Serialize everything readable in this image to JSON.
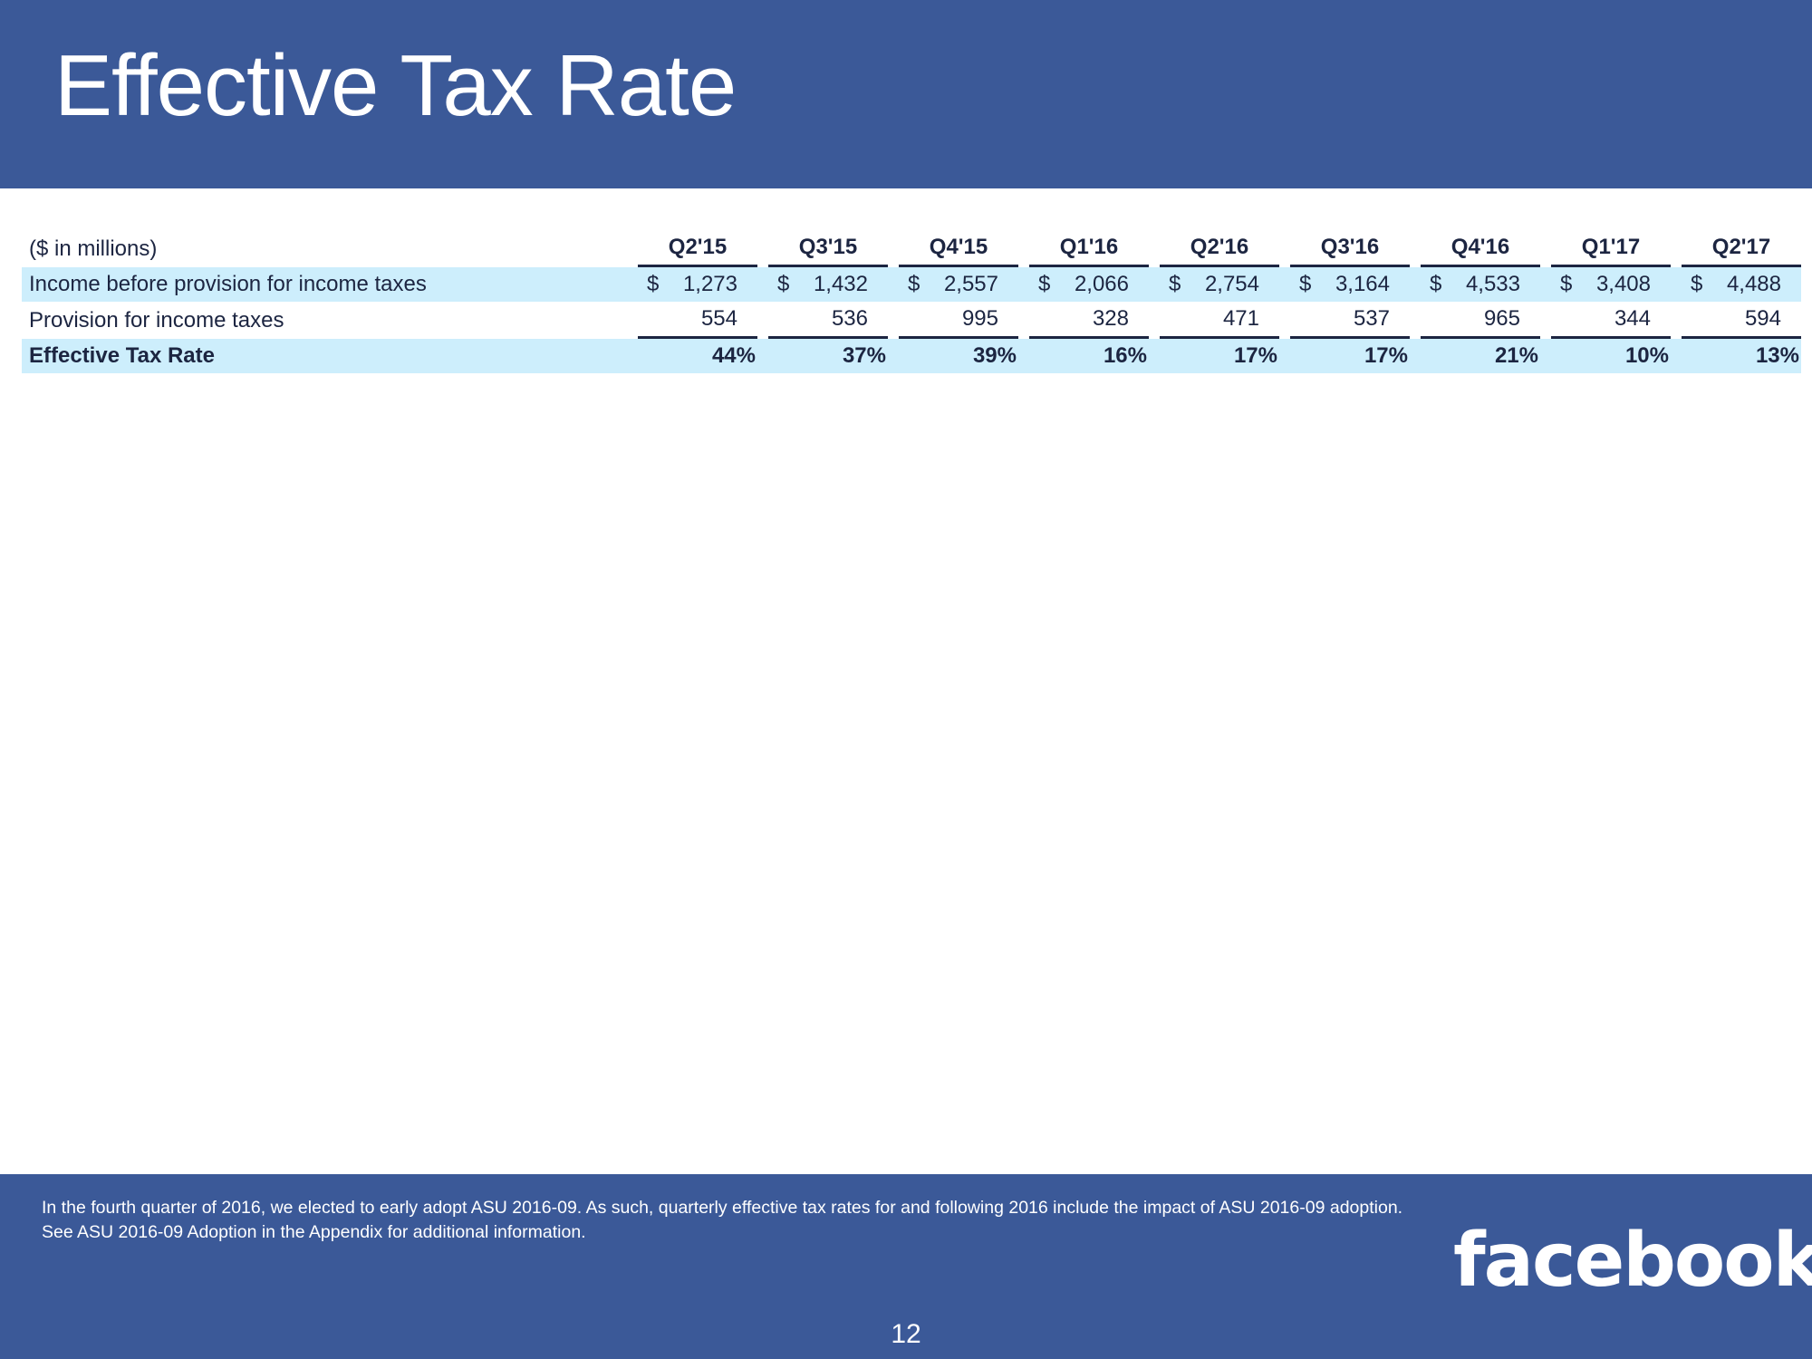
{
  "title": "Effective Tax Rate",
  "table": {
    "unit_label": "($ in millions)",
    "quarters": [
      "Q2'15",
      "Q3'15",
      "Q4'15",
      "Q1'16",
      "Q2'16",
      "Q3'16",
      "Q4'16",
      "Q1'17",
      "Q2'17"
    ],
    "rows": [
      {
        "label": "Income before provision for income taxes",
        "currency": "$",
        "values": [
          "1,273",
          "1,432",
          "2,557",
          "2,066",
          "2,754",
          "3,164",
          "4,533",
          "3,408",
          "4,488"
        ]
      },
      {
        "label": "Provision for income taxes",
        "values": [
          "554",
          "536",
          "995",
          "328",
          "471",
          "537",
          "965",
          "344",
          "594"
        ]
      },
      {
        "label": "Effective Tax Rate",
        "values": [
          "44%",
          "37%",
          "39%",
          "16%",
          "17%",
          "17%",
          "21%",
          "10%",
          "13%"
        ]
      }
    ]
  },
  "footnote": "In the fourth quarter of 2016, we elected to early adopt ASU 2016-09. As such, quarterly effective tax rates for and following 2016 include the impact of ASU 2016-09 adoption. See ASU 2016-09 Adoption in the Appendix for additional information.",
  "logo_text": "facebook",
  "page_number": "12",
  "colors": {
    "brand_blue": "#3b5998",
    "row_highlight": "#cdeefc",
    "text_dark": "#1c2541"
  }
}
